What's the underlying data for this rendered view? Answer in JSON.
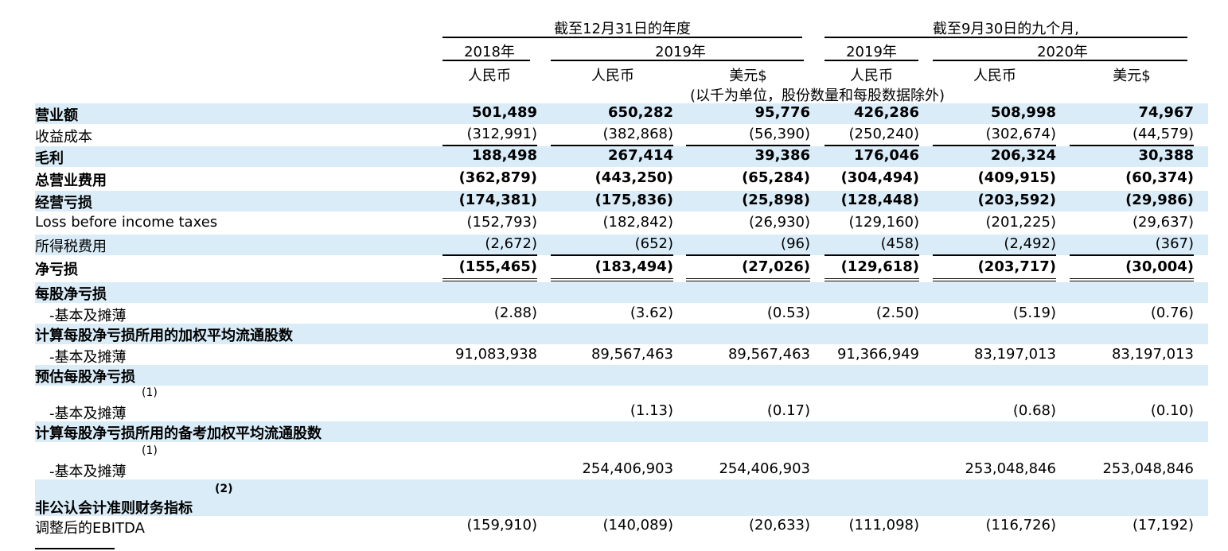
{
  "header": {
    "group1": "截至12月31日的年度",
    "group2": "截至9月30日的九个月,",
    "year_2018": "2018年",
    "year_2019a": "2019年",
    "year_2019b": "2019年",
    "year_2020": "2020年",
    "cur": [
      "人民币",
      "人民币",
      "美元$",
      "人民币",
      "人民币",
      "美元$"
    ],
    "unit_note": "(以千为单位，股份数量和每股数据除外)"
  },
  "rows": [
    {
      "label": "营业额",
      "bold": true,
      "shaded": true,
      "values": [
        "501,489",
        "650,282",
        "95,776",
        "426,286",
        "508,998",
        "74,967"
      ]
    },
    {
      "label": "收益成本",
      "bold": false,
      "shaded": false,
      "values": [
        "(312,991)",
        "(382,868)",
        "(56,390)",
        "(250,240)",
        "(302,674)",
        "(44,579)"
      ]
    },
    {
      "label": "毛利",
      "bold": true,
      "shaded": true,
      "values": [
        "188,498",
        "267,414",
        "39,386",
        "176,046",
        "206,324",
        "30,388"
      ]
    },
    {
      "label": "总营业费用",
      "bold": true,
      "shaded": false,
      "values": [
        "(362,879)",
        "(443,250)",
        "(65,284)",
        "(304,494)",
        "(409,915)",
        "(60,374)"
      ]
    },
    {
      "label": "经营亏损",
      "bold": true,
      "shaded": true,
      "values": [
        "(174,381)",
        "(175,836)",
        "(25,898)",
        "(128,448)",
        "(203,592)",
        "(29,986)"
      ]
    },
    {
      "label": "Loss before income taxes",
      "bold": false,
      "shaded": false,
      "values": [
        "(152,793)",
        "(182,842)",
        "(26,930)",
        "(129,160)",
        "(201,225)",
        "(29,637)"
      ]
    },
    {
      "label": "所得税费用",
      "bold": false,
      "shaded": true,
      "values": [
        "(2,672)",
        "(652)",
        "(96)",
        "(458)",
        "(2,492)",
        "(367)"
      ]
    },
    {
      "label": "净亏损",
      "bold": true,
      "shaded": false,
      "values": [
        "(155,465)",
        "(183,494)",
        "(27,026)",
        "(129,618)",
        "(203,717)",
        "(30,004)"
      ]
    },
    {
      "label": "每股净亏损",
      "bold": true,
      "shaded": true,
      "values": [
        "",
        "",
        "",
        "",
        "",
        ""
      ]
    },
    {
      "label": "-基本及摊薄",
      "bold": false,
      "shaded": false,
      "indent": true,
      "values": [
        "(2.88)",
        "(3.62)",
        "(0.53)",
        "(2.50)",
        "(5.19)",
        "(0.76)"
      ]
    },
    {
      "label": "计算每股净亏损所用的加权平均流通股数",
      "bold": true,
      "shaded": true,
      "values": [
        "",
        "",
        "",
        "",
        "",
        ""
      ]
    },
    {
      "label": "-基本及摊薄",
      "bold": false,
      "shaded": false,
      "indent": true,
      "values": [
        "91,083,938",
        "89,567,463",
        "89,567,463",
        "91,366,949",
        "83,197,013",
        "83,197,013"
      ]
    },
    {
      "label": "预估每股净亏损",
      "bold": true,
      "shaded": true,
      "values": [
        "",
        "",
        "",
        "",
        "",
        ""
      ]
    },
    {
      "label": "-基本及摊薄",
      "bold": false,
      "shaded": false,
      "indent": true,
      "sup": "(1)",
      "values": [
        "",
        "(1.13)",
        "(0.17)",
        "",
        "(0.68)",
        "(0.10)"
      ]
    },
    {
      "label": "计算每股净亏损所用的备考加权平均流通股数",
      "bold": true,
      "shaded": true,
      "values": [
        "",
        "",
        "",
        "",
        "",
        ""
      ]
    },
    {
      "label": "-基本及摊薄",
      "bold": false,
      "shaded": false,
      "indent": true,
      "sup": "(1)",
      "values": [
        "",
        "254,406,903",
        "254,406,903",
        "",
        "253,048,846",
        "253,048,846"
      ]
    },
    {
      "label": "非公认会计准则财务指标",
      "bold": true,
      "shaded": true,
      "sup": "(2)",
      "values": [
        "",
        "",
        "",
        "",
        "",
        ""
      ]
    },
    {
      "label": "调整后的EBITDA",
      "bold": false,
      "shaded": false,
      "values": [
        "(159,910)",
        "(140,089)",
        "(20,633)",
        "(111,098)",
        "(116,726)",
        "(17,192)"
      ]
    }
  ]
}
